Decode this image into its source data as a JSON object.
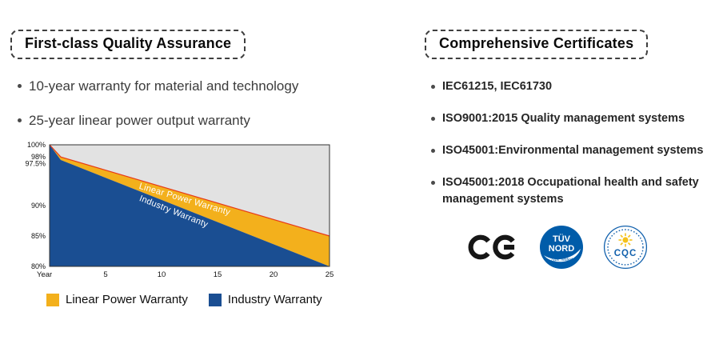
{
  "left": {
    "title": "First-class Quality Assurance",
    "bullets": [
      "10-year warranty for material and technology",
      "25-year linear power output warranty"
    ],
    "legend": [
      {
        "label": "Linear Power Warranty",
        "color": "#f3b01c"
      },
      {
        "label": "Industry Warranty",
        "color": "#1a4e92"
      }
    ]
  },
  "chart_data": {
    "type": "area",
    "title": "",
    "xlabel": "Year",
    "ylabel": "",
    "xlim": [
      0,
      25
    ],
    "ylim": [
      80,
      100
    ],
    "x_ticks": [
      5,
      10,
      15,
      20,
      25
    ],
    "y_ticks": [
      100,
      98,
      97.5,
      90,
      85,
      80
    ],
    "plot_bg": "#e2e2e2",
    "grid": false,
    "series": [
      {
        "name": "Linear Power Warranty",
        "color": "#f3b01c",
        "edge_color": "#e83a17",
        "points": [
          [
            0,
            100
          ],
          [
            1,
            98
          ],
          [
            25,
            85
          ]
        ]
      },
      {
        "name": "Industry Warranty",
        "color": "#1a4e92",
        "edge_color": "#1a4e92",
        "points": [
          [
            0,
            100
          ],
          [
            1,
            97.5
          ],
          [
            25,
            80
          ]
        ]
      }
    ],
    "area_labels": [
      {
        "text": "Linear Power Warranty",
        "x": 12
      },
      {
        "text": "Industry Warranty",
        "x": 11
      }
    ]
  },
  "right": {
    "title": "Comprehensive Certificates",
    "bullets": [
      "IEC61215, IEC61730",
      "ISO9001:2015 Quality management systems",
      "ISO45001:Environmental management systems",
      "ISO45001:2018 Occupational health and safety management systems"
    ],
    "logos": {
      "ce": "CE",
      "tuv_line1": "TÜV",
      "tuv_line2": "NORD",
      "tuv_line3": "Type Tested",
      "cqc": "CQC"
    }
  }
}
